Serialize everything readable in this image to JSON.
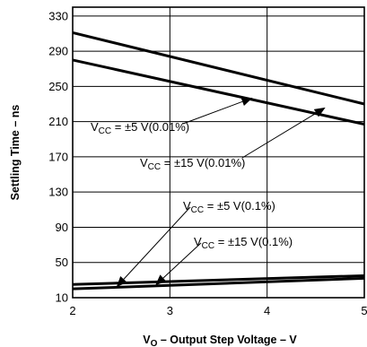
{
  "chart_data": {
    "type": "line",
    "xlabel_main": "V",
    "xlabel_sub": "O",
    "xlabel_rest": " – Output Step Voltage – V",
    "ylabel": "Settling Time – ns",
    "xlim": [
      2,
      5
    ],
    "ylim": [
      10,
      340
    ],
    "x_ticks": [
      2,
      3,
      4,
      5
    ],
    "y_ticks": [
      10,
      50,
      90,
      130,
      170,
      210,
      250,
      290,
      330
    ],
    "grid": true,
    "series": [
      {
        "name": "VCC = ±5 V(0.01%)",
        "x": [
          2,
          5
        ],
        "y": [
          311,
          230
        ]
      },
      {
        "name": "VCC = ±15 V(0.01%)",
        "x": [
          2,
          5
        ],
        "y": [
          280,
          207
        ]
      },
      {
        "name": "VCC = ±5 V(0.1%)",
        "x": [
          2,
          5
        ],
        "y": [
          25,
          35
        ]
      },
      {
        "name": "VCC = ±15 V(0.1%)",
        "x": [
          2,
          5
        ],
        "y": [
          20,
          32
        ]
      }
    ],
    "annotations": [
      {
        "series": 0,
        "pre": "V",
        "sub": "CC",
        "post": " = ±5 V(0.01%)",
        "arrow_to": [
          3.85,
          237
        ]
      },
      {
        "series": 1,
        "pre": "V",
        "sub": "CC",
        "post": " = ±15 V(0.01%)",
        "arrow_to": [
          4.6,
          226
        ]
      },
      {
        "series": 2,
        "pre": "V",
        "sub": "CC",
        "post": " = ±5 V(0.1%)",
        "arrow_to": [
          2.45,
          22
        ]
      },
      {
        "series": 3,
        "pre": "V",
        "sub": "CC",
        "post": " = ±15 V(0.1%)",
        "arrow_to": [
          2.85,
          24
        ]
      }
    ]
  }
}
